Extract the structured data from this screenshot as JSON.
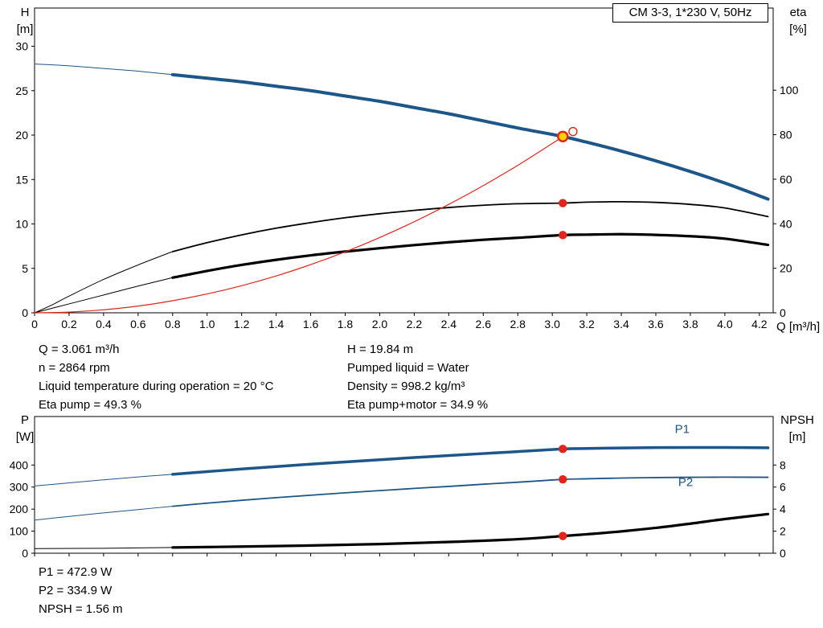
{
  "colors": {
    "blue": "#1d5689",
    "red": "#e2251b",
    "black": "#000000",
    "yellow": "#ffd400"
  },
  "chart_data": [
    {
      "type": "line",
      "name": "qh-eta-chart",
      "title": "CM 3-3, 1*230 V, 50Hz",
      "x_axis": {
        "label": "Q [m³/h]",
        "max": 4.28,
        "show_tick_labels": true,
        "tick_labels": [
          "0",
          "0.2",
          "0.4",
          "0.6",
          "0.8",
          "1.0",
          "1.2",
          "1.4",
          "1.6",
          "1.8",
          "2.0",
          "2.2",
          "2.4",
          "2.6",
          "2.8",
          "3.0",
          "3.2",
          "3.4",
          "3.6",
          "3.8",
          "4.0",
          "4.2"
        ]
      },
      "left_axis": {
        "name": "H",
        "unit": "[m]",
        "max": 34.3,
        "tick_labels": [
          "0",
          "5",
          "10",
          "15",
          "20",
          "25",
          "30"
        ]
      },
      "right_axis": {
        "name": "eta",
        "unit": "[%]",
        "max": 136.9,
        "tick_labels": [
          "0",
          "20",
          "40",
          "60",
          "80",
          "100"
        ]
      },
      "series": [
        {
          "name": "pump-head-curve",
          "axis": "left",
          "color": "blue",
          "width": 4,
          "thin_before": 0.8,
          "points": [
            [
              0,
              28
            ],
            [
              0.2,
              27.8
            ],
            [
              0.4,
              27.5
            ],
            [
              0.6,
              27.2
            ],
            [
              0.8,
              26.8
            ],
            [
              1,
              26.4
            ],
            [
              1.2,
              26
            ],
            [
              1.4,
              25.5
            ],
            [
              1.6,
              25
            ],
            [
              1.8,
              24.4
            ],
            [
              2,
              23.8
            ],
            [
              2.2,
              23.1
            ],
            [
              2.4,
              22.4
            ],
            [
              2.6,
              21.6
            ],
            [
              2.8,
              20.8
            ],
            [
              3.061,
              19.84
            ],
            [
              3.2,
              19.2
            ],
            [
              3.4,
              18.2
            ],
            [
              3.6,
              17.1
            ],
            [
              3.8,
              15.9
            ],
            [
              4,
              14.6
            ],
            [
              4.25,
              12.8
            ]
          ]
        },
        {
          "name": "eta-pump-curve",
          "axis": "right",
          "color": "black",
          "width": 1.8,
          "thin_before": 0.8,
          "points": [
            [
              0,
              0
            ],
            [
              0.1,
              3.5
            ],
            [
              0.2,
              7.5
            ],
            [
              0.4,
              15
            ],
            [
              0.6,
              21.5
            ],
            [
              0.8,
              27.5
            ],
            [
              1,
              31.5
            ],
            [
              1.2,
              35
            ],
            [
              1.4,
              38
            ],
            [
              1.6,
              40.5
            ],
            [
              1.8,
              42.7
            ],
            [
              2,
              44.5
            ],
            [
              2.2,
              46
            ],
            [
              2.4,
              47.3
            ],
            [
              2.6,
              48.3
            ],
            [
              2.8,
              49
            ],
            [
              3.061,
              49.3
            ],
            [
              3.2,
              49.7
            ],
            [
              3.4,
              49.9
            ],
            [
              3.6,
              49.6
            ],
            [
              3.8,
              48.7
            ],
            [
              4,
              47.1
            ],
            [
              4.25,
              43.2
            ]
          ]
        },
        {
          "name": "eta-pump-motor-curve",
          "axis": "right",
          "color": "black",
          "width": 3.2,
          "thin_before": 0.8,
          "points": [
            [
              0,
              0
            ],
            [
              0.2,
              4
            ],
            [
              0.4,
              8
            ],
            [
              0.6,
              12
            ],
            [
              0.8,
              15.8
            ],
            [
              1,
              18.8
            ],
            [
              1.2,
              21.5
            ],
            [
              1.4,
              23.8
            ],
            [
              1.6,
              25.8
            ],
            [
              1.8,
              27.5
            ],
            [
              2,
              29
            ],
            [
              2.2,
              30.4
            ],
            [
              2.4,
              31.7
            ],
            [
              2.6,
              32.8
            ],
            [
              2.8,
              33.7
            ],
            [
              3.061,
              34.9
            ],
            [
              3.2,
              35.1
            ],
            [
              3.4,
              35.3
            ],
            [
              3.6,
              35
            ],
            [
              3.8,
              34.4
            ],
            [
              4,
              33.3
            ],
            [
              4.25,
              30.5
            ]
          ]
        },
        {
          "name": "system-curve",
          "axis": "left",
          "color": "red",
          "width": 1.2,
          "thin_before": null,
          "points": [
            [
              0,
              0
            ],
            [
              0.2,
              0.08
            ],
            [
              0.4,
              0.34
            ],
            [
              0.6,
              0.76
            ],
            [
              0.8,
              1.36
            ],
            [
              1,
              2.12
            ],
            [
              1.2,
              3.05
            ],
            [
              1.4,
              4.15
            ],
            [
              1.6,
              5.42
            ],
            [
              1.8,
              6.86
            ],
            [
              2,
              8.47
            ],
            [
              2.2,
              10.25
            ],
            [
              2.4,
              12.2
            ],
            [
              2.6,
              14.31
            ],
            [
              2.8,
              16.6
            ],
            [
              3,
              19.06
            ],
            [
              3.061,
              19.84
            ]
          ]
        }
      ],
      "markers": [
        {
          "name": "duty-point",
          "shape": "duty",
          "axis": "left",
          "q": 3.061,
          "v": 19.84
        },
        {
          "name": "requested-duty-point",
          "shape": "open",
          "axis": "left",
          "q": 3.12,
          "v": 20.4
        },
        {
          "name": "eta-pump-point",
          "shape": "dot",
          "axis": "right",
          "q": 3.061,
          "v": 49.3
        },
        {
          "name": "eta-pump-motor-point",
          "shape": "dot",
          "axis": "right",
          "q": 3.061,
          "v": 34.9
        }
      ],
      "labels": []
    },
    {
      "type": "line",
      "name": "power-npsh-chart",
      "title": "",
      "x_axis": {
        "label": "",
        "max": 4.28,
        "show_tick_labels": false,
        "tick_labels": [
          "0",
          "0.2",
          "0.4",
          "0.6",
          "0.8",
          "1.0",
          "1.2",
          "1.4",
          "1.6",
          "1.8",
          "2.0",
          "2.2",
          "2.4",
          "2.6",
          "2.8",
          "3.0",
          "3.2",
          "3.4",
          "3.6",
          "3.8",
          "4.0",
          "4.2"
        ]
      },
      "left_axis": {
        "name": "P",
        "unit": "[W]",
        "max": 620,
        "tick_labels": [
          "0",
          "100",
          "200",
          "300",
          "400"
        ]
      },
      "right_axis": {
        "name": "NPSH",
        "unit": "[m]",
        "max": 12.4,
        "tick_labels": [
          "0",
          "2",
          "4",
          "6",
          "8"
        ]
      },
      "series": [
        {
          "name": "p1-curve",
          "axis": "left",
          "color": "blue",
          "width": 3.5,
          "thin_before": 0.8,
          "points": [
            [
              0,
              305
            ],
            [
              0.2,
              319
            ],
            [
              0.4,
              333
            ],
            [
              0.6,
              346
            ],
            [
              0.8,
              358
            ],
            [
              1,
              370
            ],
            [
              1.2,
              382
            ],
            [
              1.4,
              393
            ],
            [
              1.6,
              404
            ],
            [
              1.8,
              414
            ],
            [
              2,
              424
            ],
            [
              2.2,
              434
            ],
            [
              2.4,
              443
            ],
            [
              2.6,
              452
            ],
            [
              2.8,
              461
            ],
            [
              3.061,
              472.9
            ],
            [
              3.2,
              475
            ],
            [
              3.4,
              477.5
            ],
            [
              3.6,
              479
            ],
            [
              3.8,
              479.5
            ],
            [
              4,
              479.5
            ],
            [
              4.25,
              478
            ]
          ]
        },
        {
          "name": "p2-curve",
          "axis": "left",
          "color": "blue",
          "width": 1.8,
          "thin_before": 0.8,
          "points": [
            [
              0,
              150
            ],
            [
              0.2,
              167
            ],
            [
              0.4,
              183
            ],
            [
              0.6,
              198
            ],
            [
              0.8,
              213
            ],
            [
              1,
              227
            ],
            [
              1.2,
              240
            ],
            [
              1.4,
              252
            ],
            [
              1.6,
              263
            ],
            [
              1.8,
              274
            ],
            [
              2,
              284
            ],
            [
              2.2,
              294
            ],
            [
              2.4,
              303
            ],
            [
              2.6,
              313
            ],
            [
              2.8,
              322
            ],
            [
              3.061,
              334.9
            ],
            [
              3.2,
              337.5
            ],
            [
              3.4,
              341
            ],
            [
              3.6,
              343
            ],
            [
              3.8,
              344.5
            ],
            [
              4,
              345
            ],
            [
              4.25,
              344.5
            ]
          ]
        },
        {
          "name": "npsh-curve",
          "axis": "right",
          "color": "black",
          "width": 3.2,
          "thin_before": 0.8,
          "points": [
            [
              0,
              0.42
            ],
            [
              0.4,
              0.45
            ],
            [
              0.8,
              0.52
            ],
            [
              1.2,
              0.6
            ],
            [
              1.6,
              0.7
            ],
            [
              2,
              0.83
            ],
            [
              2.4,
              1.02
            ],
            [
              2.8,
              1.27
            ],
            [
              3.061,
              1.56
            ],
            [
              3.2,
              1.72
            ],
            [
              3.4,
              1.98
            ],
            [
              3.6,
              2.3
            ],
            [
              3.8,
              2.68
            ],
            [
              4,
              3.1
            ],
            [
              4.25,
              3.55
            ]
          ]
        }
      ],
      "markers": [
        {
          "name": "p1-point",
          "shape": "dot",
          "axis": "left",
          "q": 3.061,
          "v": 472.9
        },
        {
          "name": "p2-point",
          "shape": "dot",
          "axis": "left",
          "q": 3.061,
          "v": 334.9
        },
        {
          "name": "npsh-point",
          "shape": "dot",
          "axis": "right",
          "q": 3.061,
          "v": 1.56
        }
      ],
      "labels": [
        {
          "text": "P1",
          "q": 3.71,
          "v": 545,
          "color": "blue"
        },
        {
          "text": "P2",
          "q": 3.73,
          "v": 305,
          "color": "blue"
        }
      ]
    }
  ],
  "info_top": {
    "left": [
      "Q = 3.061 m³/h",
      "n = 2864 rpm",
      "Liquid temperature during operation = 20 °C",
      "Eta pump = 49.3 %"
    ],
    "right": [
      "H = 19.84 m",
      "Pumped liquid = Water",
      "Density = 998.2 kg/m³",
      "Eta pump+motor = 34.9 %"
    ]
  },
  "info_bottom": [
    "P1 = 472.9 W",
    "P2 = 334.9 W",
    "NPSH = 1.56 m"
  ]
}
